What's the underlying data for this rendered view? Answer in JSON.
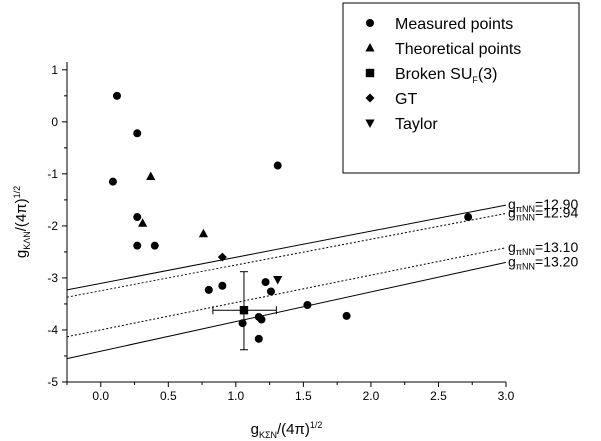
{
  "chart_data": {
    "type": "scatter",
    "xlabel": {
      "main": "g",
      "sub": "KΣN",
      "tail": "/(4π)",
      "sup": "1/2"
    },
    "ylabel": {
      "main": "g",
      "sub": "KΛN",
      "tail": "/(4π)",
      "sup": "1/2"
    },
    "xlim": [
      -0.25,
      3.0
    ],
    "ylim": [
      -5,
      1.15
    ],
    "xticks": [
      0.0,
      0.5,
      1.0,
      1.5,
      2.0,
      2.5,
      3.0
    ],
    "xtick_labels": [
      "0.0",
      "0.5",
      "1.0",
      "1.5",
      "2.0",
      "2.5",
      "3.0"
    ],
    "yticks": [
      -5,
      -4,
      -3,
      -2,
      -1,
      0,
      1
    ],
    "ytick_labels": [
      "-5",
      "-4",
      "-3",
      "-2",
      "-1",
      "0",
      "1"
    ],
    "grid": false,
    "legend_position": "top-right",
    "series": [
      {
        "name": "Measured points",
        "marker": "circle",
        "points": [
          [
            0.12,
            0.5
          ],
          [
            0.09,
            -1.15
          ],
          [
            0.27,
            -0.22
          ],
          [
            0.27,
            -1.83
          ],
          [
            0.27,
            -2.38
          ],
          [
            0.4,
            -2.38
          ],
          [
            0.8,
            -3.23
          ],
          [
            0.9,
            -3.15
          ],
          [
            1.05,
            -3.87
          ],
          [
            1.17,
            -3.75
          ],
          [
            1.17,
            -4.17
          ],
          [
            1.19,
            -3.8
          ],
          [
            1.22,
            -3.08
          ],
          [
            1.26,
            -3.26
          ],
          [
            1.31,
            -0.84
          ],
          [
            1.53,
            -3.52
          ],
          [
            1.82,
            -3.73
          ],
          [
            2.72,
            -1.83
          ]
        ]
      },
      {
        "name": "Theoretical points",
        "marker": "triangle-up",
        "points": [
          [
            0.37,
            -1.05
          ],
          [
            0.31,
            -1.95
          ],
          [
            0.76,
            -2.15
          ]
        ]
      },
      {
        "name": "Broken SU_F(3)",
        "name_parts": {
          "main": "Broken SU",
          "sub": "F",
          "tail": "(3)"
        },
        "marker": "square",
        "points": [
          [
            1.06,
            -3.62
          ]
        ],
        "error_x": [
          [
            0.83,
            1.3
          ]
        ],
        "error_y": [
          [
            -4.38,
            -2.88
          ]
        ]
      },
      {
        "name": "GT",
        "marker": "diamond",
        "points": [
          [
            0.9,
            -2.6
          ]
        ]
      },
      {
        "name": "Taylor",
        "marker": "triangle-down",
        "points": [
          [
            1.31,
            -3.03
          ]
        ]
      }
    ],
    "lines": [
      {
        "label_main": "g",
        "label_sub": "πNN",
        "label_value": "=12.90",
        "style": "solid",
        "y_at_xmin": -3.23,
        "y_at_xmax": -1.6
      },
      {
        "label_main": "g",
        "label_sub": "πNN",
        "label_value": "=12.94",
        "style": "dotted",
        "y_at_xmin": -3.37,
        "y_at_xmax": -1.76
      },
      {
        "label_main": "g",
        "label_sub": "πNN",
        "label_value": "=13.10",
        "style": "dotted",
        "y_at_xmin": -4.13,
        "y_at_xmax": -2.42
      },
      {
        "label_main": "g",
        "label_sub": "πNN",
        "label_value": "=13.20",
        "style": "solid",
        "y_at_xmin": -4.55,
        "y_at_xmax": -2.7
      }
    ]
  }
}
